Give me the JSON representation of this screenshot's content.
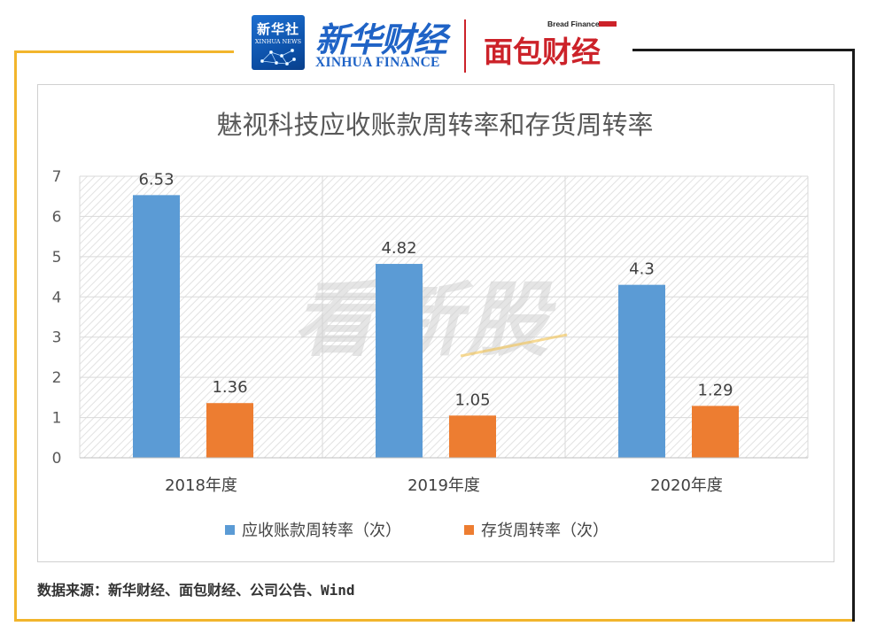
{
  "header": {
    "xinhua_news_cn": "新华社",
    "xinhua_news_en": "XINHUA NEWS",
    "xinhua_finance_cn": "新华财经",
    "xinhua_finance_en": "XINHUA FINANCE",
    "bread_finance_en": "Bread Finance",
    "bread_finance_cn": "面包财经"
  },
  "watermark": "看新股",
  "source": "数据来源：新华财经、面包财经、公司公告、Wind",
  "colors": {
    "series1": "#5b9bd5",
    "series2": "#ed7d31",
    "frame_left": "#f2b52c",
    "frame_right": "#1a1a1a",
    "brand_blue": "#1f63c6",
    "brand_red": "#cc2229"
  },
  "chart_data": {
    "type": "bar",
    "title": "魅视科技应收账款周转率和存货周转率",
    "categories": [
      "2018年度",
      "2019年度",
      "2020年度"
    ],
    "series": [
      {
        "name": "应收账款周转率（次）",
        "values": [
          6.53,
          4.82,
          4.3
        ],
        "labels": [
          "6.53",
          "4.82",
          "4.3"
        ]
      },
      {
        "name": "存货周转率（次）",
        "values": [
          1.36,
          1.05,
          1.29
        ],
        "labels": [
          "1.36",
          "1.05",
          "1.29"
        ]
      }
    ],
    "ylim": [
      0,
      7
    ],
    "yticks": [
      "0",
      "1",
      "2",
      "3",
      "4",
      "5",
      "6",
      "7"
    ],
    "grid": true,
    "legend": "bottom"
  }
}
